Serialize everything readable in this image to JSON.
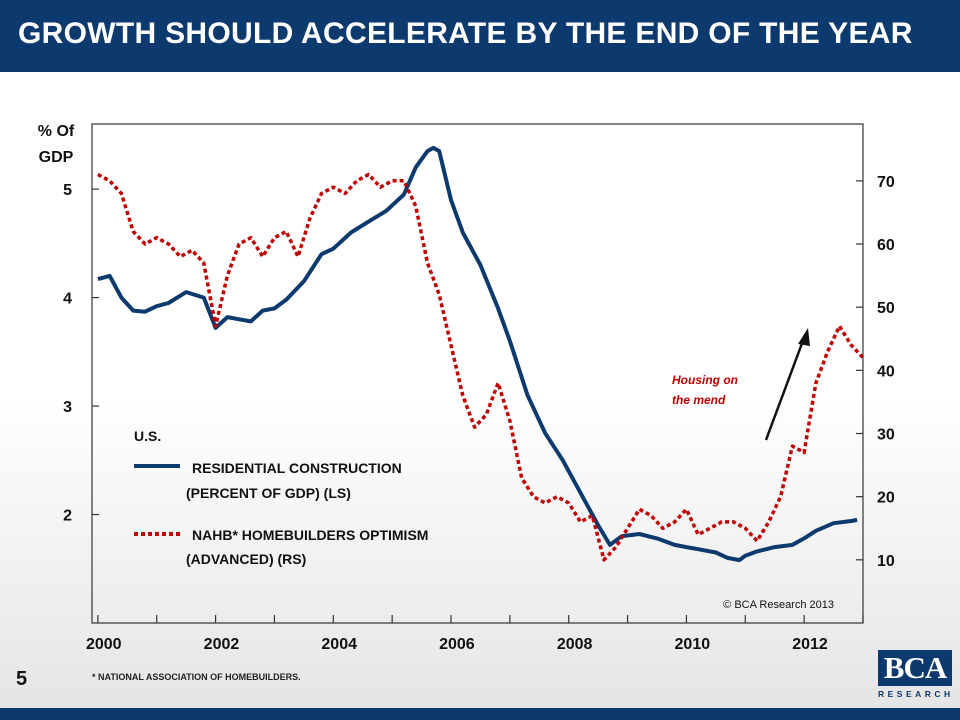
{
  "header": {
    "title": "GROWTH SHOULD ACCELERATE BY THE END OF THE YEAR"
  },
  "page_number": "5",
  "footnote": "* NATIONAL ASSOCIATION OF HOMEBUILDERS.",
  "logo": {
    "main": "BCA",
    "sub": "RESEARCH"
  },
  "colors": {
    "header_bg": "#0d3a6e",
    "residential": "#0d3a6e",
    "nahb": "#c00000",
    "annotation": "#c00000"
  },
  "chart_data": {
    "type": "line",
    "title": "GROWTH SHOULD ACCELERATE BY THE END OF THE YEAR",
    "region": "U.S.",
    "left_axis": {
      "label_line1": "% Of",
      "label_line2": "GDP",
      "ticks": [
        2,
        3,
        4,
        5
      ],
      "range": [
        1,
        5.6
      ]
    },
    "right_axis": {
      "ticks": [
        10,
        20,
        30,
        40,
        50,
        60,
        70
      ],
      "range": [
        0,
        79
      ]
    },
    "x_axis": {
      "ticks": [
        "2000",
        "2002",
        "2004",
        "2006",
        "2008",
        "2010",
        "2012"
      ],
      "range": [
        1999.9,
        2013.0
      ]
    },
    "grid": false,
    "legend_position": "left-middle",
    "series": [
      {
        "name": "RESIDENTIAL CONSTRUCTION (PERCENT OF GDP) (LS)",
        "legend_line1": "RESIDENTIAL CONSTRUCTION",
        "legend_line2": "(PERCENT OF GDP) (LS)",
        "axis": "left",
        "style": "solid",
        "x": [
          2000.0,
          2000.2,
          2000.4,
          2000.6,
          2000.8,
          2001.0,
          2001.2,
          2001.5,
          2001.8,
          2002.0,
          2002.2,
          2002.4,
          2002.6,
          2002.8,
          2003.0,
          2003.2,
          2003.5,
          2003.8,
          2004.0,
          2004.3,
          2004.6,
          2004.9,
          2005.2,
          2005.4,
          2005.6,
          2005.7,
          2005.8,
          2006.0,
          2006.2,
          2006.5,
          2006.8,
          2007.0,
          2007.3,
          2007.6,
          2007.9,
          2008.2,
          2008.5,
          2008.7,
          2008.9,
          2009.2,
          2009.5,
          2009.8,
          2010.0,
          2010.2,
          2010.5,
          2010.7,
          2010.9,
          2011.0,
          2011.2,
          2011.5,
          2011.8,
          2012.0,
          2012.2,
          2012.5,
          2012.8,
          2012.9
        ],
        "values": [
          4.17,
          4.2,
          4.0,
          3.88,
          3.87,
          3.92,
          3.95,
          4.05,
          4.0,
          3.72,
          3.82,
          3.8,
          3.78,
          3.88,
          3.9,
          3.98,
          4.15,
          4.4,
          4.45,
          4.6,
          4.7,
          4.8,
          4.95,
          5.2,
          5.35,
          5.38,
          5.35,
          4.9,
          4.6,
          4.3,
          3.9,
          3.6,
          3.1,
          2.75,
          2.5,
          2.2,
          1.9,
          1.72,
          1.8,
          1.82,
          1.78,
          1.72,
          1.7,
          1.68,
          1.65,
          1.6,
          1.58,
          1.62,
          1.66,
          1.7,
          1.72,
          1.78,
          1.85,
          1.92,
          1.94,
          1.95
        ]
      },
      {
        "name": "NAHB* HOMEBUILDERS OPTIMISM (ADVANCED) (RS)",
        "legend_line1": "NAHB*  HOMEBUILDERS OPTIMISM",
        "legend_line2": "(ADVANCED) (RS)",
        "axis": "right",
        "style": "dotted",
        "x": [
          2000.0,
          2000.2,
          2000.4,
          2000.6,
          2000.8,
          2001.0,
          2001.2,
          2001.4,
          2001.6,
          2001.8,
          2002.0,
          2002.2,
          2002.4,
          2002.6,
          2002.8,
          2003.0,
          2003.2,
          2003.4,
          2003.6,
          2003.8,
          2004.0,
          2004.2,
          2004.4,
          2004.6,
          2004.8,
          2005.0,
          2005.2,
          2005.4,
          2005.6,
          2005.8,
          2006.0,
          2006.2,
          2006.4,
          2006.6,
          2006.8,
          2007.0,
          2007.2,
          2007.4,
          2007.6,
          2007.8,
          2008.0,
          2008.2,
          2008.4,
          2008.6,
          2008.8,
          2009.0,
          2009.2,
          2009.4,
          2009.6,
          2009.8,
          2010.0,
          2010.2,
          2010.4,
          2010.6,
          2010.8,
          2011.0,
          2011.2,
          2011.4,
          2011.6,
          2011.8,
          2012.0,
          2012.2,
          2012.4,
          2012.6,
          2012.8,
          2013.0
        ],
        "values": [
          71,
          70,
          68,
          62,
          60,
          61,
          60,
          58,
          59,
          57,
          47,
          55,
          60,
          61,
          58,
          61,
          62,
          58,
          64,
          68,
          69,
          68,
          70,
          71,
          69,
          70,
          70,
          66,
          57,
          52,
          44,
          36,
          31,
          33,
          38,
          32,
          23,
          20,
          19,
          20,
          19,
          16,
          17,
          10,
          12,
          15,
          18,
          17,
          15,
          16,
          18,
          14,
          15,
          16,
          16,
          15,
          13,
          16,
          20,
          28,
          27,
          38,
          43,
          47,
          44,
          42
        ]
      }
    ],
    "annotations": [
      {
        "text_line1": "Housing on",
        "text_line2": "the mend",
        "style": "italic",
        "arrow": true
      }
    ],
    "copyright": "© BCA Research 2013"
  }
}
